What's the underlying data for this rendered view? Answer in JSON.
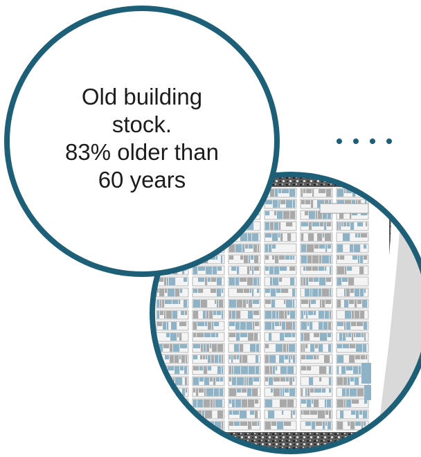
{
  "callout": {
    "lines": [
      "Old building",
      "stock.",
      "83% older than",
      "60 years"
    ]
  },
  "colors": {
    "ring": "#1e5f78",
    "older_building": "#8fb3c6",
    "other_building": "#a9a9a9",
    "water": "#d9d9d9",
    "streets": "#ffffff"
  },
  "icons": {
    "connector": "dotted-connector-icon"
  }
}
